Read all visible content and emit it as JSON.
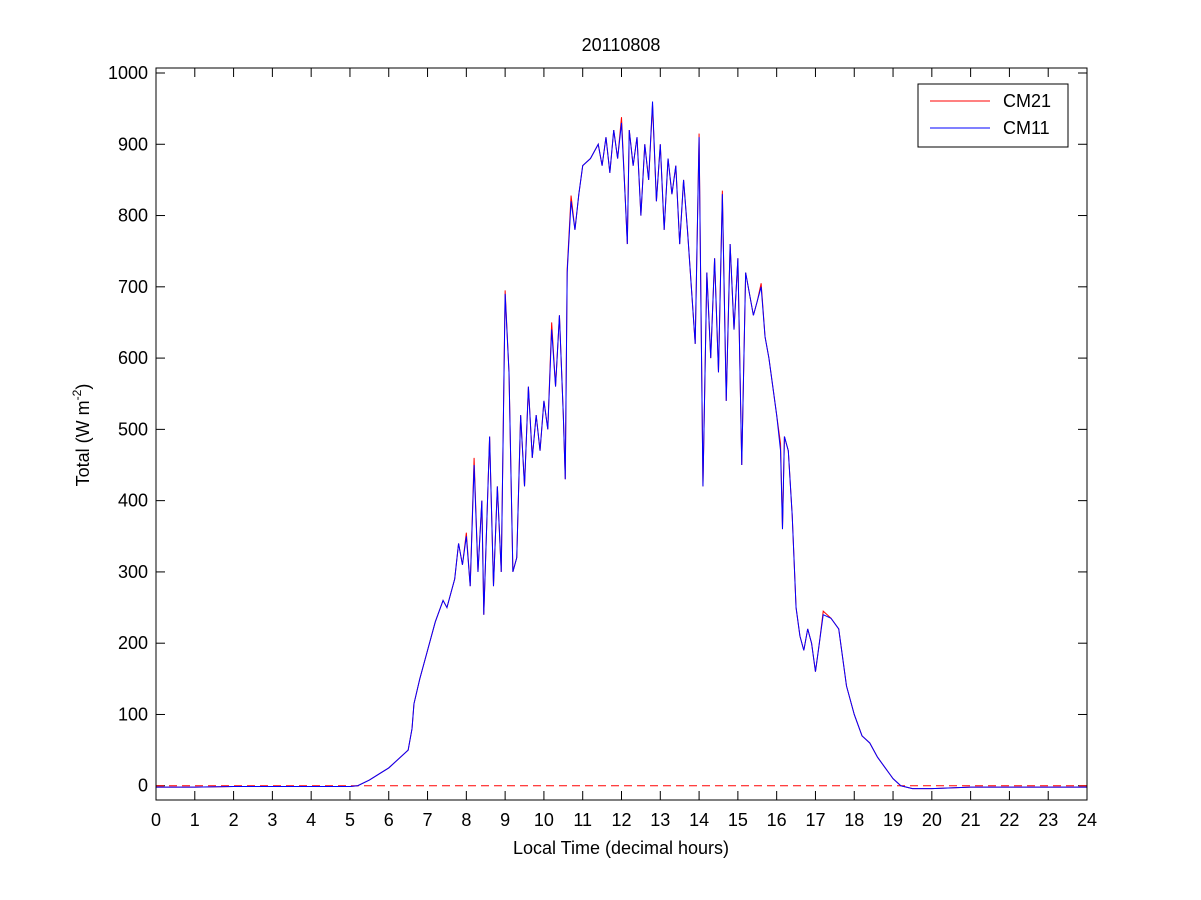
{
  "chart_data": {
    "type": "line",
    "title": "20110808",
    "x_label": "Local Time (decimal hours)",
    "y_label": "Total (W m",
    "y_label_sup": "-2",
    "y_label_end": ")",
    "x": [
      0,
      1,
      2,
      3,
      4,
      5,
      5.2,
      5.5,
      6,
      6.5,
      6.6,
      6.65,
      6.8,
      7,
      7.2,
      7.4,
      7.5,
      7.6,
      7.7,
      7.8,
      7.9,
      8,
      8.1,
      8.2,
      8.3,
      8.4,
      8.45,
      8.6,
      8.7,
      8.8,
      8.9,
      9,
      9.1,
      9.2,
      9.3,
      9.4,
      9.5,
      9.6,
      9.7,
      9.8,
      9.9,
      10,
      10.1,
      10.2,
      10.3,
      10.4,
      10.5,
      10.55,
      10.6,
      10.7,
      10.8,
      10.9,
      11,
      11.2,
      11.4,
      11.5,
      11.6,
      11.7,
      11.8,
      11.9,
      12,
      12.1,
      12.15,
      12.2,
      12.3,
      12.4,
      12.5,
      12.6,
      12.7,
      12.8,
      12.9,
      13,
      13.1,
      13.2,
      13.3,
      13.4,
      13.5,
      13.6,
      13.7,
      13.8,
      13.9,
      14,
      14.1,
      14.2,
      14.3,
      14.4,
      14.5,
      14.6,
      14.7,
      14.8,
      14.9,
      15,
      15.1,
      15.2,
      15.3,
      15.4,
      15.5,
      15.6,
      15.7,
      15.8,
      15.9,
      16,
      16.1,
      16.15,
      16.2,
      16.3,
      16.4,
      16.5,
      16.6,
      16.7,
      16.8,
      16.9,
      17,
      17.1,
      17.2,
      17.4,
      17.6,
      17.8,
      18,
      18.2,
      18.4,
      18.6,
      18.8,
      19,
      19.2,
      19.5,
      20,
      21,
      22,
      23,
      24
    ],
    "series": [
      {
        "name": "CM21",
        "color": "#ff0000",
        "values": [
          -2,
          -2,
          -1,
          -1,
          -1,
          -1,
          0,
          8,
          25,
          50,
          80,
          115,
          150,
          190,
          230,
          260,
          250,
          270,
          290,
          340,
          310,
          355,
          280,
          460,
          300,
          400,
          240,
          490,
          280,
          420,
          300,
          695,
          580,
          300,
          320,
          520,
          420,
          560,
          460,
          520,
          470,
          540,
          500,
          650,
          560,
          660,
          520,
          430,
          725,
          828,
          780,
          830,
          870,
          880,
          900,
          870,
          910,
          860,
          920,
          880,
          938,
          820,
          760,
          920,
          870,
          910,
          800,
          900,
          850,
          955,
          820,
          900,
          780,
          880,
          830,
          870,
          760,
          850,
          780,
          700,
          620,
          915,
          420,
          720,
          600,
          740,
          580,
          835,
          540,
          760,
          640,
          740,
          450,
          720,
          690,
          660,
          680,
          705,
          630,
          600,
          560,
          520,
          480,
          360,
          490,
          470,
          380,
          250,
          210,
          190,
          220,
          200,
          160,
          200,
          245,
          235,
          220,
          140,
          100,
          70,
          60,
          40,
          25,
          10,
          0,
          -4,
          -4,
          -2,
          -2,
          -2,
          -2
        ]
      },
      {
        "name": "CM11",
        "color": "#0000ff",
        "values": [
          -2,
          -2,
          -1,
          -1,
          -1,
          -1,
          0,
          8,
          25,
          50,
          80,
          115,
          150,
          190,
          230,
          260,
          250,
          270,
          290,
          340,
          310,
          350,
          280,
          450,
          300,
          400,
          240,
          490,
          280,
          420,
          300,
          690,
          580,
          300,
          320,
          520,
          420,
          560,
          460,
          520,
          470,
          540,
          500,
          640,
          560,
          660,
          520,
          430,
          720,
          820,
          780,
          830,
          870,
          880,
          900,
          870,
          910,
          860,
          920,
          880,
          930,
          820,
          760,
          920,
          870,
          910,
          800,
          900,
          850,
          960,
          820,
          900,
          780,
          880,
          830,
          870,
          760,
          850,
          780,
          700,
          620,
          910,
          420,
          720,
          600,
          740,
          580,
          830,
          540,
          760,
          640,
          740,
          450,
          720,
          690,
          660,
          680,
          700,
          630,
          600,
          560,
          520,
          470,
          360,
          490,
          470,
          380,
          250,
          210,
          190,
          220,
          200,
          160,
          200,
          240,
          235,
          220,
          140,
          100,
          70,
          60,
          40,
          25,
          10,
          0,
          -4,
          -4,
          -2,
          -2,
          -2,
          -2
        ]
      }
    ],
    "reference_line": {
      "value": 0,
      "color": "#ff0000",
      "style": "dashed"
    },
    "xlim": [
      0,
      24
    ],
    "xticks": [
      0,
      1,
      2,
      3,
      4,
      5,
      6,
      7,
      8,
      9,
      10,
      11,
      12,
      13,
      14,
      15,
      16,
      17,
      18,
      19,
      20,
      21,
      22,
      23,
      24
    ],
    "ylim": [
      -20,
      1007
    ],
    "yticks": [
      0,
      100,
      200,
      300,
      400,
      500,
      600,
      700,
      800,
      900,
      1000
    ],
    "grid": false,
    "legend": "top-right"
  }
}
